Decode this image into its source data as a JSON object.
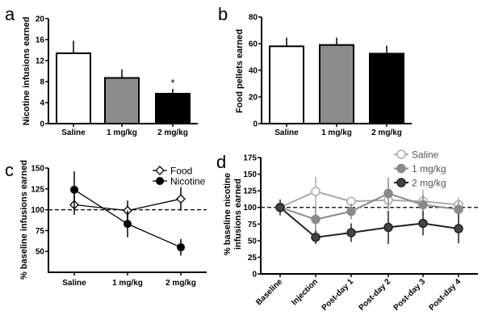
{
  "chart_data": [
    {
      "panel": "a",
      "type": "bar",
      "ylabel": "Nicotine infusions earned",
      "ylim": [
        0,
        20
      ],
      "yticks": [
        0,
        4,
        8,
        12,
        16,
        20
      ],
      "categories": [
        "Saline",
        "1 mg/kg",
        "2 mg/kg"
      ],
      "values": [
        13.4,
        8.7,
        5.7
      ],
      "errors": [
        2.4,
        1.6,
        0.9
      ],
      "fills": [
        "#ffffff",
        "#8c8c8c",
        "#000000"
      ],
      "annotations": [
        "",
        "",
        "*"
      ]
    },
    {
      "panel": "b",
      "type": "bar",
      "ylabel": "Food pellets earned",
      "ylim": [
        0,
        80
      ],
      "yticks": [
        0,
        20,
        40,
        60,
        80
      ],
      "categories": [
        "Saline",
        "1 mg/kg",
        "2 mg/kg"
      ],
      "values": [
        58,
        59,
        52.5
      ],
      "errors": [
        6.5,
        5.5,
        6
      ],
      "fills": [
        "#ffffff",
        "#8c8c8c",
        "#000000"
      ]
    },
    {
      "panel": "c",
      "type": "line",
      "ylabel": "% baseline infusions earned",
      "ylim": [
        25,
        150
      ],
      "yticks": [
        50,
        75,
        100,
        125,
        150
      ],
      "reference_line": 100,
      "categories": [
        "Saline",
        "1 mg/kg",
        "2 mg/kg"
      ],
      "legend_position": "top-right",
      "series": [
        {
          "name": "Food",
          "values": [
            106,
            99,
            113
          ],
          "errors": [
            12,
            12,
            14
          ],
          "marker": "diamond-open",
          "color": "#000000"
        },
        {
          "name": "Nicotine",
          "values": [
            124,
            83,
            55
          ],
          "errors": [
            22,
            16,
            10
          ],
          "marker": "circle-filled",
          "color": "#000000"
        }
      ]
    },
    {
      "panel": "d",
      "type": "line",
      "ylabel": [
        "% baseline nicotine",
        "infusions earned"
      ],
      "ylim": [
        0,
        175
      ],
      "yticks": [
        0,
        25,
        50,
        75,
        100,
        125,
        150,
        175
      ],
      "reference_line": 100,
      "categories": [
        "Baseline",
        "Injection",
        "Post-day 1",
        "Post-day 2",
        "Post-day 3",
        "Post-day 4"
      ],
      "legend_position": "top-right",
      "series": [
        {
          "name": "Saline",
          "values": [
            100,
            124,
            109,
            111,
            109,
            104
          ],
          "errors": [
            0,
            22,
            6,
            10,
            18,
            11
          ],
          "color": "#aaaaaa",
          "fill": "#ffffff"
        },
        {
          "name": "1 mg/kg",
          "values": [
            100,
            82,
            94,
            121,
            104,
            97
          ],
          "errors": [
            0,
            20,
            12,
            24,
            15,
            12
          ],
          "color": "#8a8a8a",
          "fill": "#8a8a8a"
        },
        {
          "name": "2 mg/kg",
          "values": [
            100,
            55,
            62,
            70,
            76,
            68
          ],
          "errors": [
            12,
            10,
            14,
            25,
            18,
            22
          ],
          "color": "#222222",
          "fill": "#444444"
        }
      ]
    }
  ]
}
